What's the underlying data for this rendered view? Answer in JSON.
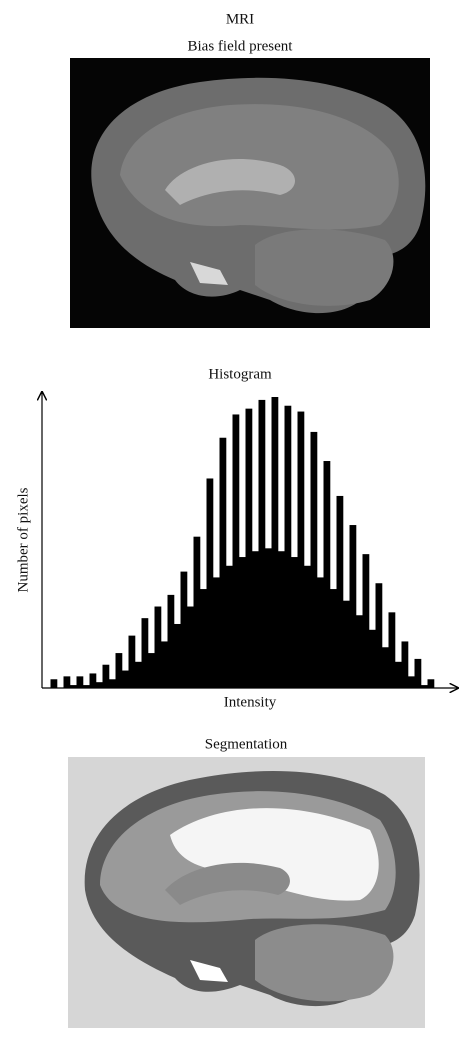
{
  "mri": {
    "title": "MRI",
    "subtitle": "Bias field present"
  },
  "chart_data": {
    "type": "histogram",
    "title": "Histogram",
    "x_label": "Intensity",
    "y_label": "Number of pixels",
    "bins": [
      0,
      1,
      2,
      3,
      4,
      5,
      6,
      7,
      8,
      9,
      10,
      11,
      12,
      13,
      14,
      15,
      16,
      17,
      18,
      19,
      20,
      21,
      22,
      23,
      24,
      25,
      26,
      27,
      28,
      29,
      30,
      31,
      32,
      33,
      34,
      35,
      36,
      37,
      38,
      39,
      40,
      41,
      42,
      43,
      44,
      45,
      46,
      47,
      48,
      49,
      50,
      51,
      52,
      53,
      54,
      55,
      56,
      57,
      58,
      59,
      60
    ],
    "counts": [
      0,
      3,
      0,
      4,
      1,
      4,
      1,
      5,
      2,
      8,
      3,
      12,
      6,
      18,
      9,
      24,
      12,
      28,
      16,
      32,
      22,
      40,
      28,
      52,
      34,
      72,
      38,
      86,
      42,
      94,
      45,
      96,
      47,
      99,
      48,
      100,
      47,
      97,
      45,
      95,
      42,
      88,
      38,
      78,
      34,
      66,
      30,
      56,
      25,
      46,
      20,
      36,
      14,
      26,
      9,
      16,
      4,
      10,
      1,
      3
    ],
    "xlim": [
      0,
      60
    ],
    "ylim": [
      0,
      100
    ],
    "color": "#000000"
  },
  "segmentation": {
    "title": "Segmentation"
  }
}
